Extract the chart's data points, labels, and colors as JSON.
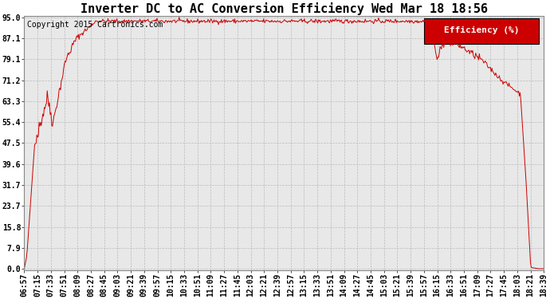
{
  "title": "Inverter DC to AC Conversion Efficiency Wed Mar 18 18:56",
  "copyright": "Copyright 2015 Cartronics.com",
  "legend_label": "Efficiency (%)",
  "legend_bg": "#cc0000",
  "legend_fg": "#ffffff",
  "line_color": "#cc0000",
  "bg_color": "#ffffff",
  "plot_bg": "#e8e8e8",
  "ytick_labels": [
    "0.0",
    "7.9",
    "15.8",
    "23.7",
    "31.7",
    "39.6",
    "47.5",
    "55.4",
    "63.3",
    "71.2",
    "79.1",
    "87.1",
    "95.0"
  ],
  "ytick_values": [
    0.0,
    7.9,
    15.8,
    23.7,
    31.7,
    39.6,
    47.5,
    55.4,
    63.3,
    71.2,
    79.1,
    87.1,
    95.0
  ],
  "xtick_labels": [
    "06:57",
    "07:15",
    "07:33",
    "07:51",
    "08:09",
    "08:27",
    "08:45",
    "09:03",
    "09:21",
    "09:39",
    "09:57",
    "10:15",
    "10:33",
    "10:51",
    "11:09",
    "11:27",
    "11:45",
    "12:03",
    "12:21",
    "12:39",
    "12:57",
    "13:15",
    "13:33",
    "13:51",
    "14:09",
    "14:27",
    "14:45",
    "15:03",
    "15:21",
    "15:39",
    "15:57",
    "16:15",
    "16:33",
    "16:51",
    "17:09",
    "17:27",
    "17:45",
    "18:03",
    "18:21",
    "18:39"
  ],
  "title_fontsize": 11,
  "copyright_fontsize": 7,
  "tick_fontsize": 7,
  "legend_fontsize": 8,
  "ymax": 95.0,
  "ymin": 0.0,
  "line_width": 0.7
}
